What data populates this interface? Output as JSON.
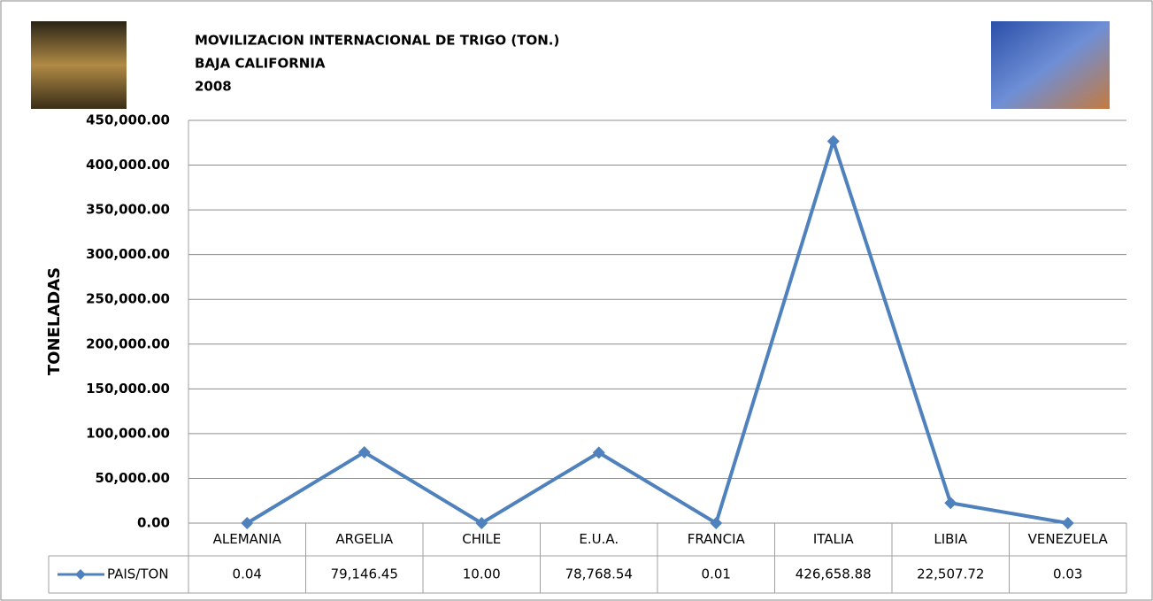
{
  "chart_data": {
    "type": "line",
    "title_lines": [
      "MOVILIZACION INTERNACIONAL DE TRIGO (TON.)",
      "BAJA CALIFORNIA",
      "2008"
    ],
    "y_label": "TONELADAS",
    "categories": [
      "ALEMANIA",
      "ARGELIA",
      "CHILE",
      "E.U.A.",
      "FRANCIA",
      "ITALIA",
      "LIBIA",
      "VENEZUELA"
    ],
    "series": [
      {
        "name": "PAIS/TON",
        "color": "#4f81bd",
        "values": [
          0.04,
          79146.45,
          10.0,
          78768.54,
          0.01,
          426658.88,
          22507.72,
          0.03
        ],
        "value_labels": [
          "0.04",
          "79,146.45",
          "10.00",
          "78,768.54",
          "0.01",
          "426,658.88",
          "22,507.72",
          "0.03"
        ]
      }
    ],
    "ylim": [
      0,
      450000
    ],
    "yticks": [
      {
        "value": 0,
        "label": "0.00"
      },
      {
        "value": 50000,
        "label": "50,000.00"
      },
      {
        "value": 100000,
        "label": "100,000.00"
      },
      {
        "value": 150000,
        "label": "150,000.00"
      },
      {
        "value": 200000,
        "label": "200,000.00"
      },
      {
        "value": 250000,
        "label": "250,000.00"
      },
      {
        "value": 300000,
        "label": "300,000.00"
      },
      {
        "value": 350000,
        "label": "350,000.00"
      },
      {
        "value": 400000,
        "label": "400,000.00"
      },
      {
        "value": 450000,
        "label": "450,000.00"
      }
    ],
    "grid": true,
    "data_table": true
  }
}
